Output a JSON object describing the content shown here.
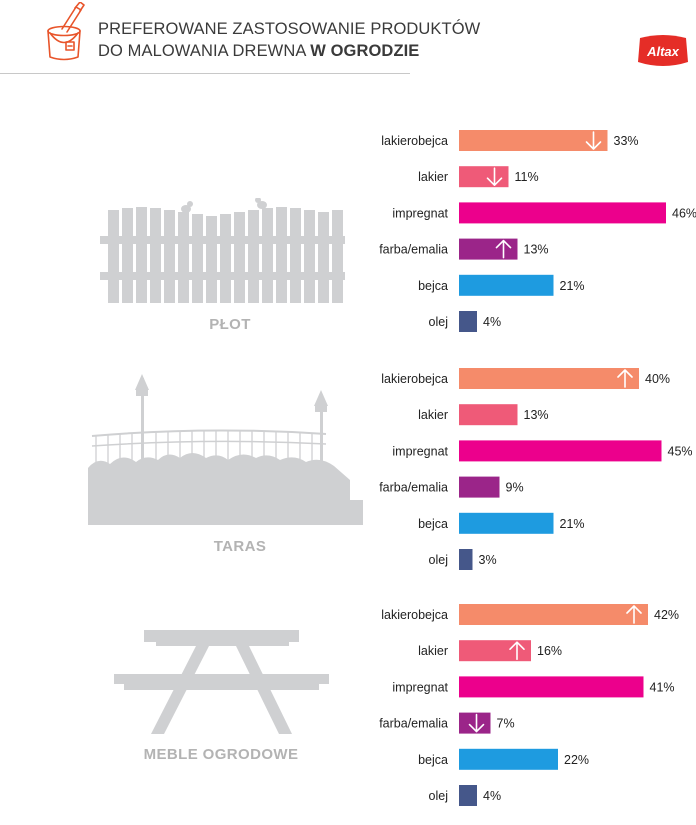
{
  "header": {
    "title_line1": "PREFEROWANE ZASTOSOWANIE PRODUKTÓW",
    "title_line2_regular": "DO MALOWANIA DREWNA",
    "title_line2_bold": "W OGRODZIE",
    "logo_text": "Altax"
  },
  "colors": {
    "accent": "#e8542a",
    "lakierobejca": "#f58b6a",
    "lakier": "#ef5a78",
    "impregnat": "#ec008c",
    "farba_emalia": "#9b2589",
    "bejca": "#1e9be0",
    "olej": "#45578a",
    "illustration": "#cfd0d2"
  },
  "chart_data": [
    {
      "type": "bar",
      "section": "PŁOT",
      "categories": [
        "lakierobejca",
        "lakier",
        "impregnat",
        "farba/emalia",
        "bejca",
        "olej"
      ],
      "values": [
        33,
        11,
        46,
        13,
        21,
        4
      ],
      "value_labels": [
        "33%",
        "11%",
        "46%",
        "13%",
        "21%",
        "4%"
      ],
      "trend": [
        "down",
        "down",
        "",
        "up",
        "",
        ""
      ]
    },
    {
      "type": "bar",
      "section": "TARAS",
      "categories": [
        "lakierobejca",
        "lakier",
        "impregnat",
        "farba/emalia",
        "bejca",
        "olej"
      ],
      "values": [
        40,
        13,
        45,
        9,
        21,
        3
      ],
      "value_labels": [
        "40%",
        "13%",
        "45%",
        "9%",
        "21%",
        "3%"
      ],
      "trend": [
        "up",
        "",
        "",
        "",
        "",
        ""
      ]
    },
    {
      "type": "bar",
      "section": "MEBLE OGRODOWE",
      "categories": [
        "lakierobejca",
        "lakier",
        "impregnat",
        "farba/emalia",
        "bejca",
        "olej"
      ],
      "values": [
        42,
        16,
        41,
        7,
        22,
        4
      ],
      "value_labels": [
        "42%",
        "16%",
        "41%",
        "7%",
        "22%",
        "4%"
      ],
      "trend": [
        "up",
        "up",
        "",
        "down",
        "",
        ""
      ]
    }
  ]
}
